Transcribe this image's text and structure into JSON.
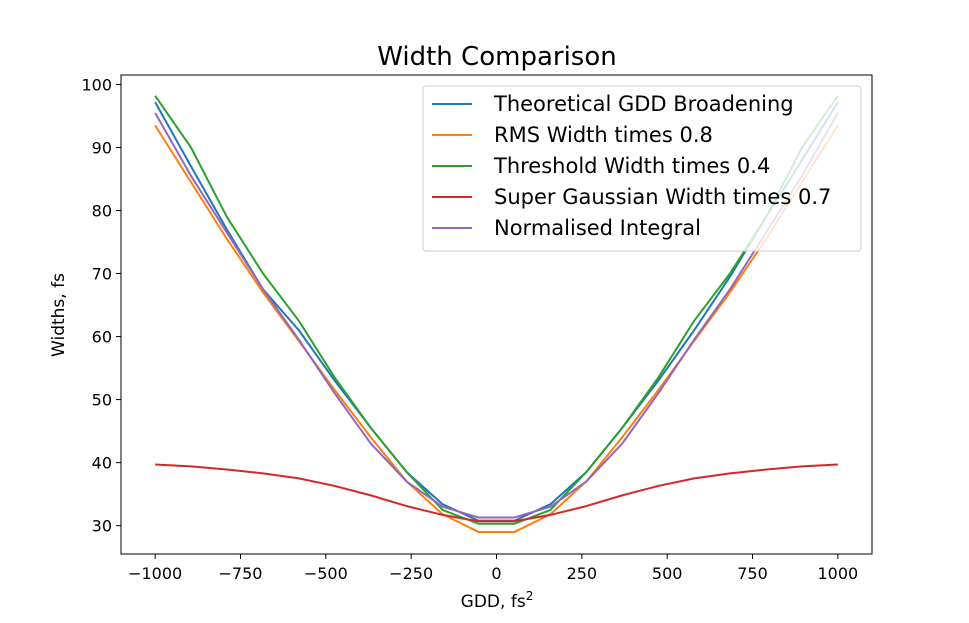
{
  "chart_data": {
    "type": "line",
    "title": "Width Comparison",
    "xlabel": "GDD, fs",
    "xlabel_sup": "2",
    "ylabel": "Widths, fs",
    "xlim": [
      -1100,
      1100
    ],
    "ylim": [
      25.5,
      101.5
    ],
    "xticks": [
      -1000,
      -750,
      -500,
      -250,
      0,
      250,
      500,
      750,
      1000
    ],
    "xtick_labels": [
      "−1000",
      "−750",
      "−500",
      "−250",
      "0",
      "250",
      "500",
      "750",
      "1000"
    ],
    "yticks": [
      30,
      40,
      50,
      60,
      70,
      80,
      90,
      100
    ],
    "ytick_labels": [
      "30",
      "40",
      "50",
      "60",
      "70",
      "80",
      "90",
      "100"
    ],
    "grid": false,
    "legend_position": "top-right",
    "x": [
      -1000,
      -895,
      -790,
      -684,
      -579,
      -474,
      -368,
      -263,
      -158,
      -53,
      53,
      158,
      263,
      368,
      474,
      579,
      684,
      790,
      895,
      1000
    ],
    "series": [
      {
        "name": "Theoretical GDD Broadening",
        "color": "#1f77b4",
        "values": [
          97.2,
          87.0,
          77.0,
          67.5,
          61.0,
          53.0,
          45.5,
          38.5,
          33.4,
          30.8,
          30.8,
          33.4,
          38.5,
          45.5,
          53.0,
          61.0,
          69.5,
          79.0,
          88.0,
          97.2
        ]
      },
      {
        "name": "RMS Width times 0.8",
        "color": "#ff7f0e",
        "values": [
          93.5,
          84.5,
          75.5,
          67.0,
          59.3,
          51.5,
          44.0,
          37.0,
          31.8,
          29.0,
          29.0,
          31.8,
          37.0,
          44.0,
          51.5,
          59.3,
          67.0,
          75.5,
          84.5,
          93.5
        ]
      },
      {
        "name": "Threshold Width times 0.4",
        "color": "#2ca02c",
        "values": [
          98.2,
          90.0,
          79.0,
          70.0,
          62.5,
          53.5,
          45.5,
          38.5,
          32.5,
          30.3,
          30.3,
          32.5,
          38.5,
          45.5,
          53.5,
          62.5,
          70.0,
          79.0,
          90.0,
          98.2
        ]
      },
      {
        "name": "Super Gaussian Width times 0.7",
        "color": "#d62728",
        "values": [
          39.7,
          39.4,
          38.9,
          38.3,
          37.5,
          36.3,
          34.8,
          33.1,
          31.7,
          30.7,
          30.7,
          31.7,
          33.1,
          34.8,
          36.3,
          37.5,
          38.3,
          38.9,
          39.4,
          39.7
        ]
      },
      {
        "name": "Normalised Integral",
        "color": "#9467bd",
        "values": [
          95.5,
          85.5,
          76.5,
          67.5,
          59.5,
          51.0,
          43.0,
          37.0,
          33.0,
          31.3,
          31.3,
          33.0,
          37.0,
          43.0,
          51.0,
          59.5,
          67.5,
          76.5,
          85.5,
          95.5
        ]
      }
    ]
  }
}
